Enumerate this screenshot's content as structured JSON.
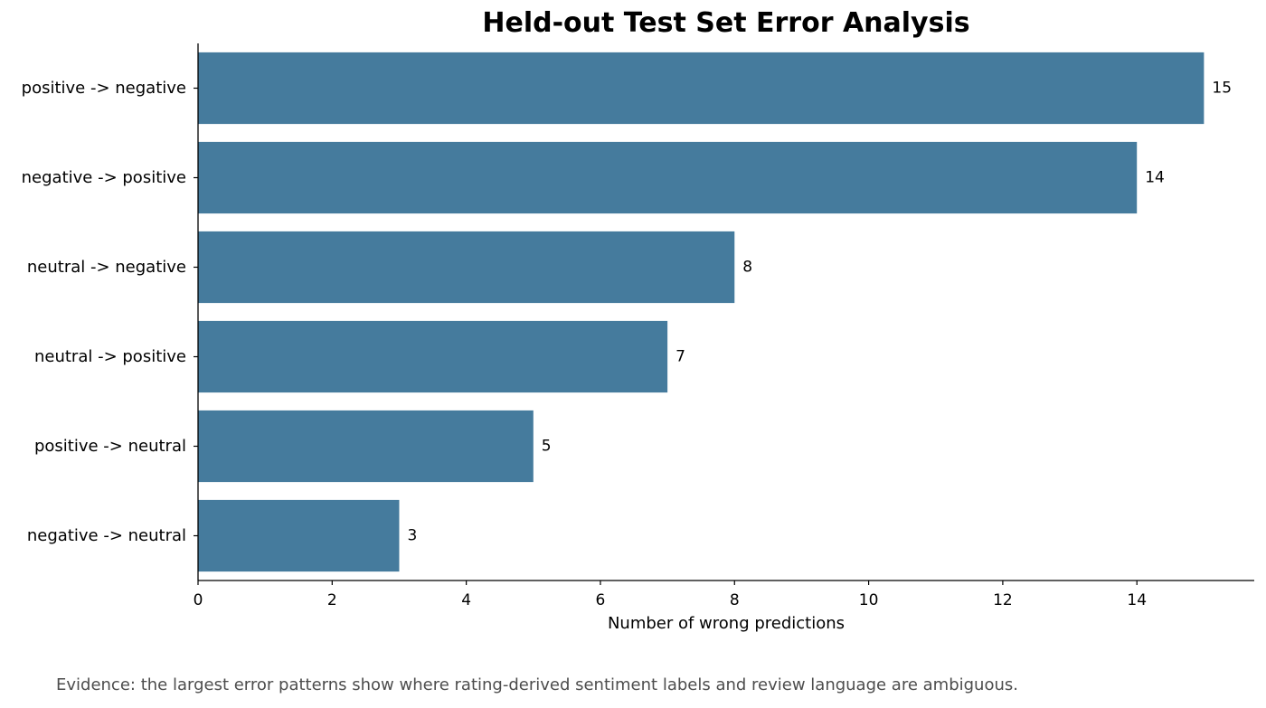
{
  "chart_data": {
    "type": "bar",
    "orientation": "horizontal",
    "title": "Held-out Test Set Error Analysis",
    "xlabel": "Number of wrong predictions",
    "ylabel": "",
    "categories": [
      "positive -> negative",
      "negative -> positive",
      "neutral -> negative",
      "neutral -> positive",
      "positive -> neutral",
      "negative -> neutral"
    ],
    "values": [
      15,
      14,
      8,
      7,
      5,
      3
    ],
    "data_labels": [
      "15",
      "14",
      "8",
      "7",
      "5",
      "3"
    ],
    "xlim": [
      0,
      15.75
    ],
    "xticks": [
      0,
      2,
      4,
      6,
      8,
      10,
      12,
      14
    ],
    "xtick_labels": [
      "0",
      "2",
      "4",
      "6",
      "8",
      "10",
      "12",
      "14"
    ],
    "grid": false,
    "bar_color": "#457b9d"
  },
  "caption": "Evidence: the largest error patterns show where rating-derived sentiment labels and review language are ambiguous."
}
